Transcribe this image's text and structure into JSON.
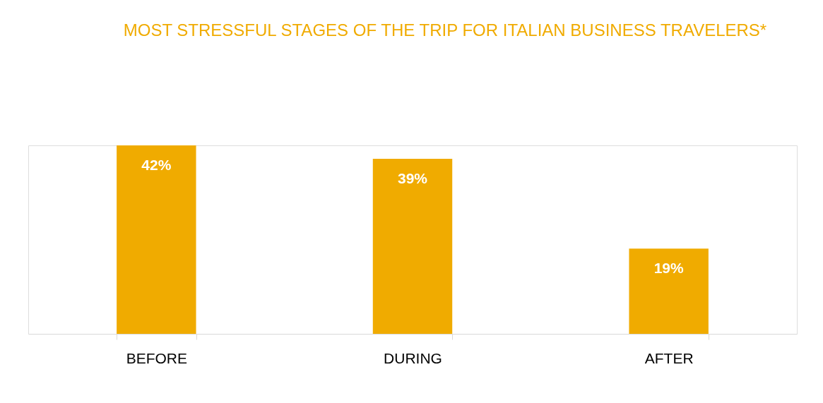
{
  "chart_data": {
    "type": "bar",
    "title": "MOST STRESSFUL STAGES OF THE TRIP FOR ITALIAN BUSINESS TRAVELERS*",
    "categories": [
      "BEFORE",
      "DURING",
      "AFTER"
    ],
    "values": [
      42,
      39,
      19
    ],
    "value_labels": [
      "42%",
      "39%",
      "19%"
    ],
    "color": "#f0ab00"
  }
}
